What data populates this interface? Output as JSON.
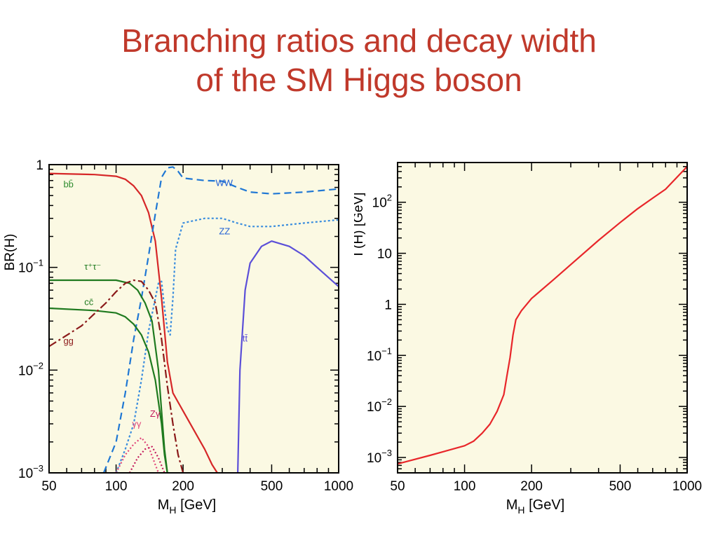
{
  "slide": {
    "title_lines": [
      "Branching ratios and decay width",
      "of the SM Higgs boson"
    ],
    "title_color": "#c0392b"
  },
  "colors": {
    "plot_background": "#fbf9e3",
    "frame": "#000000"
  },
  "chart_data": [
    {
      "type": "line",
      "ylabel": "BR(H)",
      "xlabel_main": "M",
      "xlabel_sub": "H",
      "xlabel_unit": " [GeV]",
      "x_scale": "log",
      "y_scale": "log",
      "xlim": [
        50,
        1000
      ],
      "ylim": [
        0.001,
        1
      ],
      "x_ticks": [
        {
          "value": 50,
          "label": "50"
        },
        {
          "value": 100,
          "label": "100"
        },
        {
          "value": 200,
          "label": "200"
        },
        {
          "value": 500,
          "label": "500"
        },
        {
          "value": 1000,
          "label": "1000"
        }
      ],
      "y_ticks": [
        {
          "value": 1,
          "base": "1",
          "exp": ""
        },
        {
          "value": 0.1,
          "base": "10",
          "exp": "−1"
        },
        {
          "value": 0.01,
          "base": "10",
          "exp": "−2"
        },
        {
          "value": 0.001,
          "base": "10",
          "exp": "−3"
        }
      ],
      "series": [
        {
          "name": "bb̄",
          "color": "#d62728",
          "dash": "solid",
          "label_color": "#2e8b2e",
          "label_at": [
            58,
            0.6
          ],
          "points": [
            [
              50,
              0.82
            ],
            [
              80,
              0.8
            ],
            [
              100,
              0.77
            ],
            [
              110,
              0.72
            ],
            [
              120,
              0.62
            ],
            [
              130,
              0.5
            ],
            [
              140,
              0.34
            ],
            [
              150,
              0.18
            ],
            [
              160,
              0.05
            ],
            [
              170,
              0.012
            ],
            [
              180,
              0.006
            ],
            [
              200,
              0.004
            ],
            [
              250,
              0.0017
            ],
            [
              270,
              0.0012
            ],
            [
              285,
              0.001
            ]
          ]
        },
        {
          "name": "WW",
          "color": "#1f77d4",
          "dash": "10,6",
          "label_color": "#1f5fd4",
          "label_at": [
            280,
            0.62
          ],
          "points": [
            [
              88,
              0.001
            ],
            [
              100,
              0.002
            ],
            [
              110,
              0.006
            ],
            [
              120,
              0.02
            ],
            [
              130,
              0.05
            ],
            [
              140,
              0.13
            ],
            [
              150,
              0.33
            ],
            [
              160,
              0.75
            ],
            [
              170,
              0.93
            ],
            [
              180,
              0.95
            ],
            [
              190,
              0.86
            ],
            [
              200,
              0.74
            ],
            [
              250,
              0.7
            ],
            [
              300,
              0.69
            ],
            [
              350,
              0.6
            ],
            [
              400,
              0.54
            ],
            [
              500,
              0.52
            ],
            [
              700,
              0.54
            ],
            [
              1000,
              0.58
            ]
          ]
        },
        {
          "name": "ZZ",
          "color": "#3a8dde",
          "dash": "3,3",
          "label_color": "#1f5fd4",
          "label_at": [
            290,
            0.21
          ],
          "points": [
            [
              100,
              0.001
            ],
            [
              110,
              0.0017
            ],
            [
              120,
              0.003
            ],
            [
              130,
              0.008
            ],
            [
              140,
              0.024
            ],
            [
              150,
              0.05
            ],
            [
              155,
              0.07
            ],
            [
              160,
              0.073
            ],
            [
              165,
              0.04
            ],
            [
              170,
              0.025
            ],
            [
              175,
              0.022
            ],
            [
              180,
              0.05
            ],
            [
              185,
              0.15
            ],
            [
              200,
              0.27
            ],
            [
              250,
              0.3
            ],
            [
              300,
              0.3
            ],
            [
              350,
              0.27
            ],
            [
              400,
              0.25
            ],
            [
              500,
              0.25
            ],
            [
              700,
              0.27
            ],
            [
              1000,
              0.29
            ]
          ]
        },
        {
          "name": "tt̄",
          "color": "#5b4fd8",
          "dash": "solid",
          "label_color": "#5b4fd8",
          "label_at": [
            370,
            0.019
          ],
          "points": [
            [
              352,
              0.001
            ],
            [
              360,
              0.01
            ],
            [
              380,
              0.06
            ],
            [
              400,
              0.11
            ],
            [
              450,
              0.16
            ],
            [
              500,
              0.18
            ],
            [
              600,
              0.16
            ],
            [
              700,
              0.13
            ],
            [
              800,
              0.1
            ],
            [
              1000,
              0.065
            ]
          ]
        },
        {
          "name": "τ⁺τ⁻",
          "color": "#1f7a1f",
          "dash": "solid",
          "label_color": "#1f7a1f",
          "label_at": [
            72,
            0.095
          ],
          "points": [
            [
              50,
              0.075
            ],
            [
              80,
              0.075
            ],
            [
              100,
              0.075
            ],
            [
              115,
              0.07
            ],
            [
              125,
              0.06
            ],
            [
              135,
              0.045
            ],
            [
              145,
              0.03
            ],
            [
              155,
              0.01
            ],
            [
              160,
              0.004
            ],
            [
              165,
              0.0017
            ],
            [
              170,
              0.001
            ]
          ]
        },
        {
          "name": "cc̄",
          "color": "#1f7a1f",
          "dash": "solid",
          "label_color": "#1f7a1f",
          "label_at": [
            72,
            0.043
          ],
          "points": [
            [
              50,
              0.04
            ],
            [
              80,
              0.038
            ],
            [
              100,
              0.036
            ],
            [
              110,
              0.033
            ],
            [
              120,
              0.028
            ],
            [
              130,
              0.022
            ],
            [
              140,
              0.015
            ],
            [
              150,
              0.008
            ],
            [
              160,
              0.003
            ],
            [
              165,
              0.0015
            ],
            [
              170,
              0.001
            ]
          ]
        },
        {
          "name": "gg",
          "color": "#8b1a1a",
          "dash": "12,4,3,4",
          "label_color": "#8b1a1a",
          "label_at": [
            58,
            0.018
          ],
          "points": [
            [
              50,
              0.017
            ],
            [
              70,
              0.027
            ],
            [
              90,
              0.045
            ],
            [
              100,
              0.058
            ],
            [
              110,
              0.07
            ],
            [
              120,
              0.075
            ],
            [
              130,
              0.073
            ],
            [
              140,
              0.06
            ],
            [
              150,
              0.045
            ],
            [
              160,
              0.02
            ],
            [
              170,
              0.007
            ],
            [
              180,
              0.003
            ],
            [
              190,
              0.0015
            ],
            [
              200,
              0.001
            ]
          ]
        },
        {
          "name": "γγ",
          "color": "#e0457a",
          "dash": "2,3",
          "label_color": "#e0457a",
          "label_at": [
            118,
            0.0028
          ],
          "points": [
            [
              100,
              0.001
            ],
            [
              110,
              0.0015
            ],
            [
              120,
              0.0019
            ],
            [
              130,
              0.0022
            ],
            [
              140,
              0.0018
            ],
            [
              150,
              0.0012
            ],
            [
              155,
              0.001
            ]
          ]
        },
        {
          "name": "Zγ",
          "color": "#c2185b",
          "dash": "2,3",
          "label_color": "#c2185b",
          "label_at": [
            142,
            0.0035
          ],
          "points": [
            [
              115,
              0.001
            ],
            [
              125,
              0.0014
            ],
            [
              135,
              0.0017
            ],
            [
              145,
              0.0018
            ],
            [
              155,
              0.0014
            ],
            [
              165,
              0.001
            ]
          ]
        }
      ]
    },
    {
      "type": "line",
      "ylabel": "Γ(H) [GeV]",
      "xlabel_main": "M",
      "xlabel_sub": "H",
      "xlabel_unit": " [GeV]",
      "x_scale": "log",
      "y_scale": "log",
      "xlim": [
        50,
        1000
      ],
      "ylim": [
        0.0005,
        600
      ],
      "x_ticks": [
        {
          "value": 50,
          "label": "50"
        },
        {
          "value": 100,
          "label": "100"
        },
        {
          "value": 200,
          "label": "200"
        },
        {
          "value": 500,
          "label": "500"
        },
        {
          "value": 1000,
          "label": "1000"
        }
      ],
      "y_ticks": [
        {
          "value": 100,
          "base": "10",
          "exp": "2"
        },
        {
          "value": 10,
          "base": "10",
          "exp": ""
        },
        {
          "value": 1,
          "base": "1",
          "exp": ""
        },
        {
          "value": 0.1,
          "base": "10",
          "exp": "−1"
        },
        {
          "value": 0.01,
          "base": "10",
          "exp": "−2"
        },
        {
          "value": 0.001,
          "base": "10",
          "exp": "−3"
        }
      ],
      "series": [
        {
          "name": "",
          "color": "#e8262a",
          "dash": "solid",
          "points": [
            [
              50,
              0.00075
            ],
            [
              70,
              0.0011
            ],
            [
              100,
              0.0017
            ],
            [
              110,
              0.0021
            ],
            [
              120,
              0.003
            ],
            [
              130,
              0.0045
            ],
            [
              140,
              0.008
            ],
            [
              150,
              0.017
            ],
            [
              155,
              0.04
            ],
            [
              160,
              0.09
            ],
            [
              165,
              0.25
            ],
            [
              170,
              0.5
            ],
            [
              180,
              0.75
            ],
            [
              200,
              1.3
            ],
            [
              250,
              3
            ],
            [
              300,
              6
            ],
            [
              400,
              18
            ],
            [
              500,
              40
            ],
            [
              600,
              75
            ],
            [
              700,
              120
            ],
            [
              800,
              180
            ],
            [
              1000,
              500
            ]
          ]
        }
      ]
    }
  ]
}
